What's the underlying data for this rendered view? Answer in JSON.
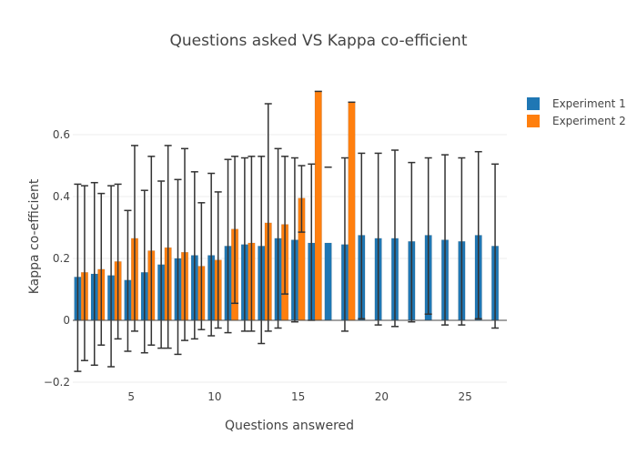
{
  "chart_data": {
    "type": "bar",
    "title": "Questions asked VS Kappa co-efficient",
    "xlabel": "Questions answered",
    "ylabel": "Kappa co-efficient",
    "xlim": [
      1.5,
      27.5
    ],
    "ylim": [
      -0.2,
      0.8
    ],
    "xticks": [
      5,
      10,
      15,
      20,
      25
    ],
    "yticks": [
      -0.2,
      0,
      0.2,
      0.4,
      0.6
    ],
    "ytick_labels": [
      "−0.2",
      "0",
      "0.2",
      "0.4",
      "0.6"
    ],
    "grid": true,
    "legend_position": "top-right",
    "x": [
      2,
      3,
      4,
      5,
      6,
      7,
      8,
      9,
      10,
      11,
      12,
      13,
      14,
      15,
      16,
      17,
      18,
      19,
      20,
      21,
      22,
      23,
      24,
      25,
      26,
      27
    ],
    "series": [
      {
        "name": "Experiment 1",
        "color": "#1f77b4",
        "values": [
          0.14,
          0.15,
          0.145,
          0.13,
          0.155,
          0.18,
          0.2,
          0.21,
          0.21,
          0.24,
          0.245,
          0.24,
          0.265,
          0.26,
          0.25,
          0.25,
          0.245,
          0.275,
          0.265,
          0.265,
          0.255,
          0.275,
          0.26,
          0.255,
          0.275,
          0.24
        ],
        "error_low": [
          -0.165,
          -0.145,
          -0.15,
          -0.1,
          -0.105,
          -0.09,
          -0.11,
          -0.06,
          -0.05,
          -0.04,
          -0.035,
          -0.075,
          -0.025,
          -0.005,
          0.0,
          null,
          -0.035,
          0.005,
          -0.015,
          -0.02,
          -0.005,
          0.02,
          -0.015,
          -0.015,
          0.005,
          -0.025
        ],
        "error_high": [
          0.44,
          0.445,
          0.435,
          0.355,
          0.42,
          0.45,
          0.455,
          0.48,
          0.475,
          0.52,
          0.525,
          0.53,
          0.555,
          0.525,
          0.505,
          0.495,
          0.525,
          0.54,
          0.54,
          0.55,
          0.51,
          0.525,
          0.535,
          0.525,
          0.545,
          0.505
        ]
      },
      {
        "name": "Experiment 2",
        "color": "#ff7f0e",
        "values": [
          0.155,
          0.165,
          0.19,
          0.265,
          0.225,
          0.235,
          0.22,
          0.175,
          0.195,
          0.295,
          0.25,
          0.315,
          0.31,
          0.395,
          0.74,
          null,
          0.705,
          null,
          null,
          null,
          null,
          null,
          null,
          null,
          null,
          null
        ],
        "error_low": [
          -0.13,
          -0.08,
          -0.06,
          -0.035,
          -0.08,
          -0.09,
          -0.065,
          -0.03,
          -0.025,
          0.055,
          -0.035,
          -0.035,
          0.085,
          0.285,
          null,
          null,
          null,
          null,
          null,
          null,
          null,
          null,
          null,
          null,
          null,
          null
        ],
        "error_high": [
          0.435,
          0.41,
          0.44,
          0.565,
          0.53,
          0.565,
          0.555,
          0.38,
          0.415,
          0.53,
          0.53,
          0.7,
          0.53,
          0.5,
          0.74,
          null,
          0.705,
          null,
          null,
          null,
          null,
          null,
          null,
          null,
          null,
          null
        ]
      }
    ]
  }
}
